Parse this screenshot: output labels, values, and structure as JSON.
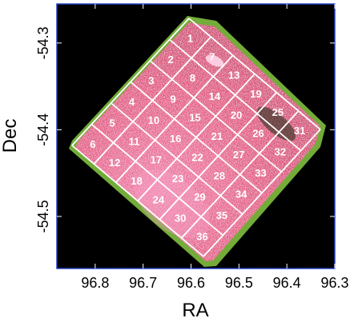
{
  "axes": {
    "x_title": "RA",
    "y_title": "Dec",
    "x_ticks": [
      "96.8",
      "96.7",
      "96.6",
      "96.5",
      "96.4",
      "96.3"
    ],
    "y_ticks": [
      "-54.3",
      "-54.4",
      "-54.5"
    ],
    "x_range": [
      96.88,
      96.3
    ],
    "y_range": [
      -54.56,
      -54.255
    ]
  },
  "colors": {
    "background": "#000000",
    "emission": "#e0507a",
    "edge": "#7fbf3f",
    "grid": "#ffffff",
    "frame": "#1f3fbf"
  },
  "cells": [
    {
      "id": "1",
      "i": 0,
      "j": 0
    },
    {
      "id": "2",
      "i": 0,
      "j": 1
    },
    {
      "id": "3",
      "i": 0,
      "j": 2
    },
    {
      "id": "4",
      "i": 0,
      "j": 3
    },
    {
      "id": "5",
      "i": 0,
      "j": 4
    },
    {
      "id": "6",
      "i": 0,
      "j": 5
    },
    {
      "id": "7",
      "i": 1,
      "j": 0
    },
    {
      "id": "8",
      "i": 1,
      "j": 1
    },
    {
      "id": "9",
      "i": 1,
      "j": 2
    },
    {
      "id": "10",
      "i": 1,
      "j": 3
    },
    {
      "id": "11",
      "i": 1,
      "j": 4
    },
    {
      "id": "12",
      "i": 1,
      "j": 5
    },
    {
      "id": "13",
      "i": 2,
      "j": 0
    },
    {
      "id": "14",
      "i": 2,
      "j": 1
    },
    {
      "id": "15",
      "i": 2,
      "j": 2
    },
    {
      "id": "16",
      "i": 2,
      "j": 3
    },
    {
      "id": "17",
      "i": 2,
      "j": 4
    },
    {
      "id": "18",
      "i": 2,
      "j": 5
    },
    {
      "id": "19",
      "i": 3,
      "j": 0
    },
    {
      "id": "20",
      "i": 3,
      "j": 1
    },
    {
      "id": "21",
      "i": 3,
      "j": 2
    },
    {
      "id": "22",
      "i": 3,
      "j": 3
    },
    {
      "id": "23",
      "i": 3,
      "j": 4
    },
    {
      "id": "24",
      "i": 3,
      "j": 5
    },
    {
      "id": "25",
      "i": 4,
      "j": 0
    },
    {
      "id": "26",
      "i": 4,
      "j": 1
    },
    {
      "id": "27",
      "i": 4,
      "j": 2
    },
    {
      "id": "28",
      "i": 4,
      "j": 3
    },
    {
      "id": "29",
      "i": 4,
      "j": 4
    },
    {
      "id": "30",
      "i": 4,
      "j": 5
    },
    {
      "id": "31",
      "i": 5,
      "j": 0
    },
    {
      "id": "32",
      "i": 5,
      "j": 1
    },
    {
      "id": "33",
      "i": 5,
      "j": 2
    },
    {
      "id": "34",
      "i": 5,
      "j": 3
    },
    {
      "id": "35",
      "i": 5,
      "j": 4
    },
    {
      "id": "36",
      "i": 5,
      "j": 5
    }
  ]
}
